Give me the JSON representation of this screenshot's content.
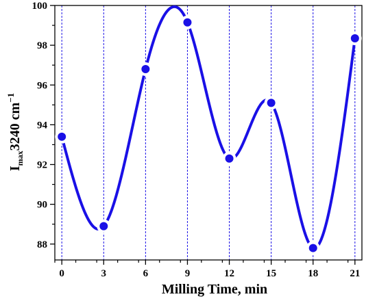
{
  "chart_data": {
    "type": "line",
    "xlabel": "Milling Time, min",
    "ylabel": {
      "main": "I",
      "sub": "max",
      "rest": "3240 cm",
      "sup": "−1"
    },
    "xlim": [
      -0.5,
      21.5
    ],
    "ylim": [
      87.2,
      100
    ],
    "xticks": [
      0,
      3,
      6,
      9,
      12,
      15,
      18,
      21
    ],
    "yticks": [
      88,
      90,
      92,
      94,
      96,
      98,
      100
    ],
    "x_gridlines": "dashed-vertical",
    "curve": "smooth-spline",
    "series_color": "#1a10e6",
    "series": [
      {
        "x": [
          0,
          3,
          6,
          9,
          12,
          15,
          18,
          21
        ],
        "values": [
          93.4,
          88.9,
          96.8,
          99.15,
          92.3,
          95.1,
          87.8,
          98.35
        ]
      }
    ]
  }
}
